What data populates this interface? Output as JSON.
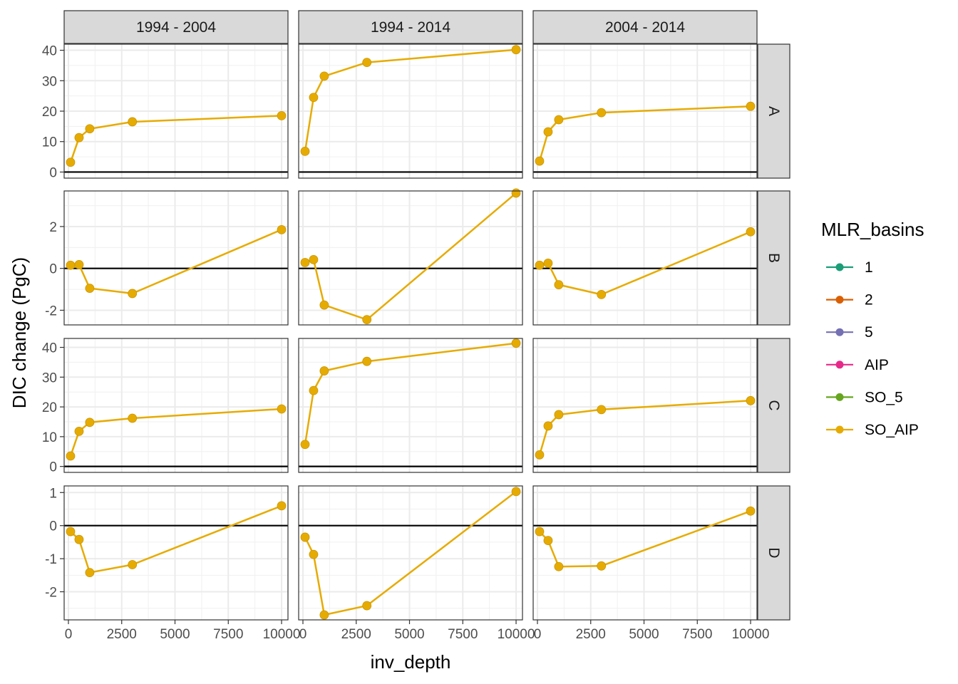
{
  "chart_data": {
    "type": "line",
    "xlabel": "inv_depth",
    "ylabel": "DIC change (PgC)",
    "column_facets": [
      "1994 - 2004",
      "1994 - 2014",
      "2004 - 2014"
    ],
    "row_facets": [
      "A",
      "B",
      "C",
      "D"
    ],
    "x_ticks": [
      0,
      2500,
      5000,
      7500,
      10000
    ],
    "x_tick_labels": [
      "0",
      "2500",
      "5000",
      "7500",
      "10000"
    ],
    "xlim": [
      -200,
      10300
    ],
    "rows": [
      {
        "facet": "A",
        "ylim": [
          -2,
          42
        ],
        "y_ticks": [
          0,
          10,
          20,
          30,
          40
        ],
        "y_tick_labels": [
          "0",
          "10",
          "20",
          "30",
          "40"
        ],
        "hline": 0
      },
      {
        "facet": "B",
        "ylim": [
          -2.7,
          3.7
        ],
        "y_ticks": [
          -2,
          0,
          2
        ],
        "y_tick_labels": [
          "-2",
          "0",
          "2"
        ],
        "hline": 0
      },
      {
        "facet": "C",
        "ylim": [
          -2,
          43
        ],
        "y_ticks": [
          0,
          10,
          20,
          30,
          40
        ],
        "y_tick_labels": [
          "0",
          "10",
          "20",
          "30",
          "40"
        ],
        "hline": 0
      },
      {
        "facet": "D",
        "ylim": [
          -2.85,
          1.2
        ],
        "y_ticks": [
          -2,
          -1,
          0,
          1
        ],
        "y_tick_labels": [
          "-2",
          "-1",
          "0",
          "1"
        ],
        "hline": 0
      }
    ],
    "panels": [
      {
        "row": "A",
        "col": "1994 - 2004",
        "x": [
          100,
          500,
          1000,
          3000,
          10000
        ],
        "y": [
          3.2,
          11.3,
          14.2,
          16.5,
          18.5
        ]
      },
      {
        "row": "A",
        "col": "1994 - 2014",
        "x": [
          100,
          500,
          1000,
          3000,
          10000
        ],
        "y": [
          6.8,
          24.5,
          31.5,
          36.0,
          40.2
        ]
      },
      {
        "row": "A",
        "col": "2004 - 2014",
        "x": [
          100,
          500,
          1000,
          3000,
          10000
        ],
        "y": [
          3.6,
          13.2,
          17.2,
          19.5,
          21.6
        ]
      },
      {
        "row": "B",
        "col": "1994 - 2004",
        "x": [
          100,
          500,
          1000,
          3000,
          10000
        ],
        "y": [
          0.15,
          0.18,
          -0.95,
          -1.2,
          1.85
        ]
      },
      {
        "row": "B",
        "col": "1994 - 2014",
        "x": [
          100,
          500,
          1000,
          3000,
          10000
        ],
        "y": [
          0.28,
          0.42,
          -1.75,
          -2.45,
          3.6
        ]
      },
      {
        "row": "B",
        "col": "2004 - 2014",
        "x": [
          100,
          500,
          1000,
          3000,
          10000
        ],
        "y": [
          0.15,
          0.25,
          -0.78,
          -1.25,
          1.75
        ]
      },
      {
        "row": "C",
        "col": "1994 - 2004",
        "x": [
          100,
          500,
          1000,
          3000,
          10000
        ],
        "y": [
          3.5,
          11.8,
          14.8,
          16.2,
          19.3
        ]
      },
      {
        "row": "C",
        "col": "1994 - 2014",
        "x": [
          100,
          500,
          1000,
          3000,
          10000
        ],
        "y": [
          7.4,
          25.5,
          32.1,
          35.3,
          41.4
        ]
      },
      {
        "row": "C",
        "col": "2004 - 2014",
        "x": [
          100,
          500,
          1000,
          3000,
          10000
        ],
        "y": [
          3.9,
          13.6,
          17.4,
          19.1,
          22.1
        ]
      },
      {
        "row": "D",
        "col": "1994 - 2004",
        "x": [
          100,
          500,
          1000,
          3000,
          10000
        ],
        "y": [
          -0.18,
          -0.42,
          -1.42,
          -1.18,
          0.6
        ]
      },
      {
        "row": "D",
        "col": "1994 - 2014",
        "x": [
          100,
          500,
          1000,
          3000,
          10000
        ],
        "y": [
          -0.35,
          -0.87,
          -2.7,
          -2.42,
          1.03
        ]
      },
      {
        "row": "D",
        "col": "2004 - 2014",
        "x": [
          100,
          500,
          1000,
          3000,
          10000
        ],
        "y": [
          -0.18,
          -0.45,
          -1.24,
          -1.22,
          0.44
        ]
      }
    ],
    "series_color": "#E6AB02",
    "legend": {
      "title": "MLR_basins",
      "position": "right",
      "entries": [
        {
          "label": "1",
          "color": "#1B9E77"
        },
        {
          "label": "2",
          "color": "#D95F02"
        },
        {
          "label": "5",
          "color": "#7570B3"
        },
        {
          "label": "AIP",
          "color": "#E7298A"
        },
        {
          "label": "SO_5",
          "color": "#66A61E"
        },
        {
          "label": "SO_AIP",
          "color": "#E6AB02"
        }
      ]
    },
    "grid": true,
    "theme": "bw"
  }
}
